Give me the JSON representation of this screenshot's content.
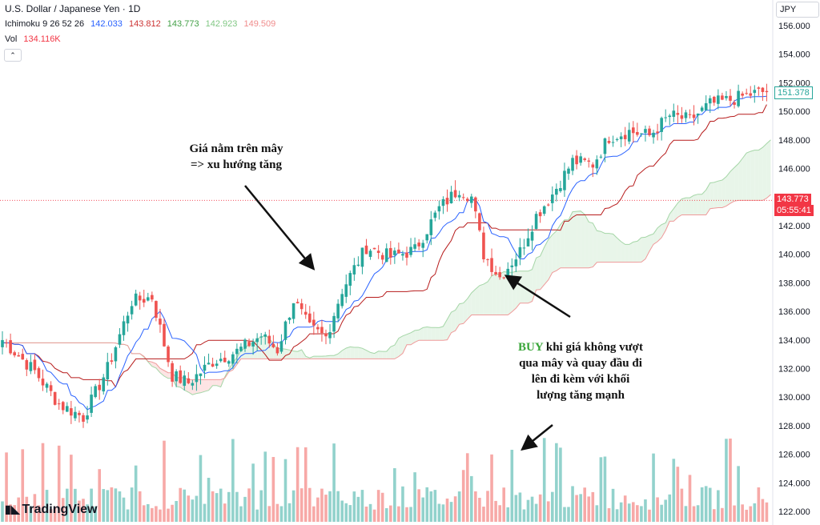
{
  "legend": {
    "symbol": "U.S. Dollar / Japanese Yen · 1D",
    "ichimoku_label": "Ichimoku 9 26 52 26",
    "ichimoku_values": [
      {
        "value": "142.033",
        "color": "#2962ff"
      },
      {
        "value": "143.812",
        "color": "#cc3333"
      },
      {
        "value": "143.773",
        "color": "#43a047"
      },
      {
        "value": "142.923",
        "color": "#81c784"
      },
      {
        "value": "149.509",
        "color": "#f08c8c"
      }
    ],
    "vol_label": "Vol",
    "vol_value": "134.116K",
    "vol_color": "#f23645",
    "collapse": "⌃"
  },
  "currency_button": "JPY",
  "price_tags": {
    "last": "151.378",
    "reference": "143.773",
    "countdown": "05:55:41"
  },
  "annotations": {
    "note1_line1": "Giá nằm trên mây",
    "note1_line2": "=> xu hướng tăng",
    "note2_buy": "BUY",
    "note2_rest1": " khi giá không vượt",
    "note2_line2": "qua mây và quay đầu đi",
    "note2_line3": "lên đi kèm với khối",
    "note2_line4": "lượng tăng mạnh"
  },
  "logo": "TradingView",
  "colors": {
    "up": "#26a69a",
    "down": "#ef5350",
    "vol_up": "#92d2cc",
    "vol_down": "#f7a9a7",
    "tenkan": "#2962ff",
    "kijun": "#b71c1c",
    "chikou": "#43a047",
    "span_a": "#a5d6a7",
    "span_b": "#ef9a9a",
    "cloud_bull": "#e8f5e9",
    "cloud_bear": "#fde4e4",
    "ref_line": "#f23645"
  },
  "chart_data": {
    "type": "candlestick",
    "yaxis": {
      "ticks": [
        156,
        154,
        152,
        150,
        148,
        146,
        144,
        142,
        140,
        138,
        136,
        134,
        132,
        130,
        128,
        126,
        124,
        122
      ],
      "range": [
        121.3,
        157.3
      ]
    },
    "reference_price": 143.773,
    "last_price": 151.378,
    "price_path_anchors": [
      [
        0,
        134.0
      ],
      [
        8,
        131.8
      ],
      [
        14,
        129.5
      ],
      [
        20,
        128.6
      ],
      [
        26,
        132.0
      ],
      [
        32,
        136.7
      ],
      [
        37,
        137.0
      ],
      [
        42,
        131.5
      ],
      [
        46,
        131.0
      ],
      [
        52,
        132.5
      ],
      [
        58,
        133.2
      ],
      [
        64,
        134.3
      ],
      [
        68,
        133.3
      ],
      [
        72,
        136.8
      ],
      [
        76,
        134.8
      ],
      [
        80,
        134.2
      ],
      [
        84,
        137.5
      ],
      [
        90,
        140.5
      ],
      [
        96,
        139.8
      ],
      [
        102,
        140.3
      ],
      [
        108,
        143.2
      ],
      [
        113,
        144.6
      ],
      [
        116,
        144.0
      ],
      [
        119,
        140.0
      ],
      [
        123,
        138.4
      ],
      [
        128,
        140.2
      ],
      [
        132,
        142.7
      ],
      [
        136,
        144.2
      ],
      [
        141,
        146.5
      ],
      [
        146,
        146.3
      ],
      [
        150,
        148.2
      ],
      [
        155,
        148.6
      ],
      [
        160,
        148.3
      ],
      [
        165,
        149.7
      ],
      [
        170,
        149.4
      ],
      [
        175,
        150.5
      ],
      [
        180,
        150.8
      ],
      [
        185,
        151.2
      ],
      [
        189,
        151.4
      ]
    ],
    "volume_spike_bar": 126,
    "volume_spike_note": "BUY volume"
  }
}
